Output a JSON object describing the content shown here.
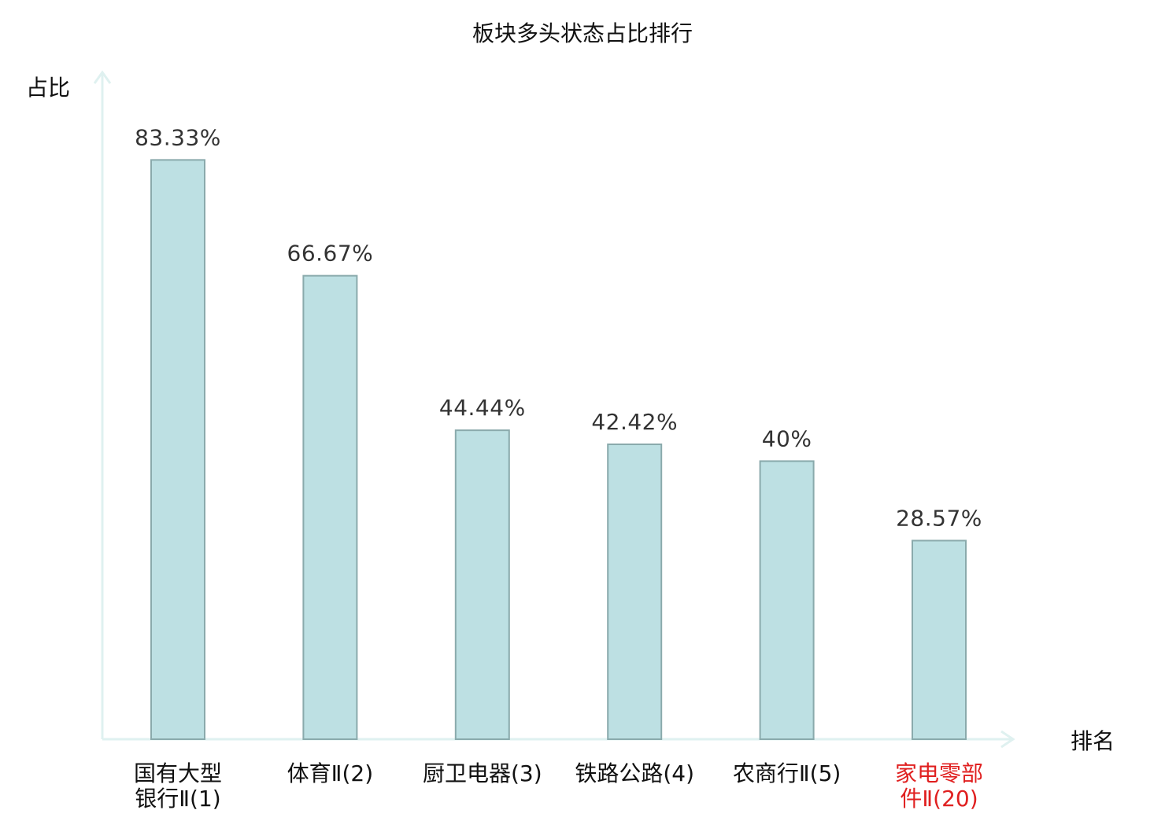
{
  "chart_data": {
    "type": "bar",
    "title": "板块多头状态占比排行",
    "ylabel": "占比",
    "xlabel": "排名",
    "ylim": [
      0,
      100
    ],
    "grid": false,
    "categories": [
      {
        "lines": [
          "国有大型",
          "银行Ⅱ(1)"
        ],
        "highlight": false
      },
      {
        "lines": [
          "体育Ⅱ(2)"
        ],
        "highlight": false
      },
      {
        "lines": [
          "厨卫电器(3)"
        ],
        "highlight": false
      },
      {
        "lines": [
          "铁路公路(4)"
        ],
        "highlight": false
      },
      {
        "lines": [
          "农商行Ⅱ(5)"
        ],
        "highlight": false
      },
      {
        "lines": [
          "家电零部",
          "件Ⅱ(20)"
        ],
        "highlight": true
      }
    ],
    "values": [
      83.33,
      66.67,
      44.44,
      42.42,
      40,
      28.57
    ],
    "value_labels": [
      "83.33%",
      "66.67%",
      "44.44%",
      "42.42%",
      "40%",
      "28.57%"
    ],
    "colors": {
      "bar_fill": "#bde0e3",
      "bar_stroke": "#8aaaac",
      "axis": "#dff1f0",
      "text": "#333333",
      "highlight": "#e02020",
      "label": "#111111"
    }
  }
}
